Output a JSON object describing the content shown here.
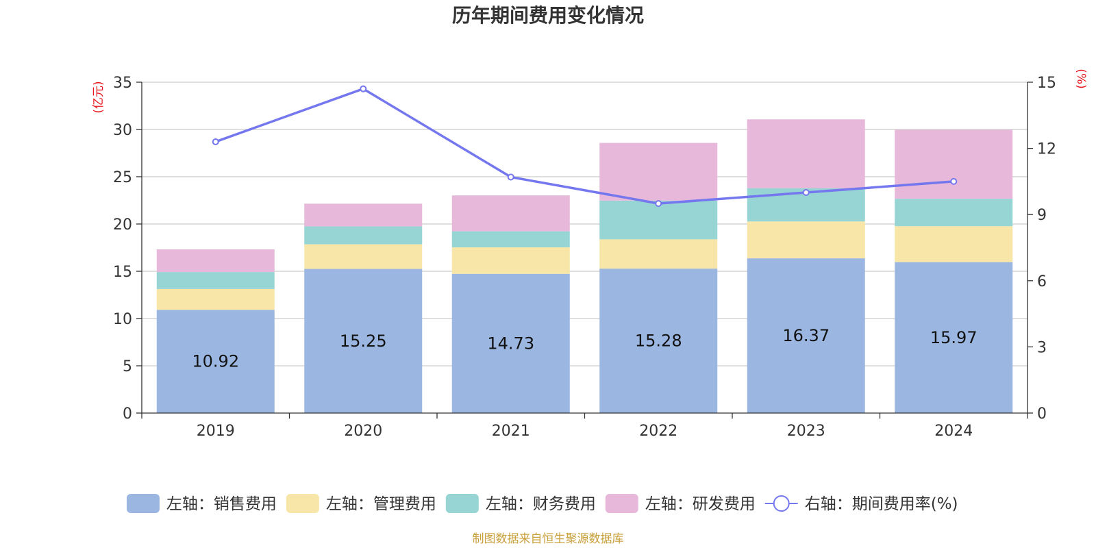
{
  "chart_data": {
    "type": "bar",
    "title": "历年期间费用变化情况",
    "categories": [
      "2019",
      "2020",
      "2021",
      "2022",
      "2023",
      "2024"
    ],
    "left_axis": {
      "unit": "(亿元)",
      "ylim": [
        0,
        35
      ],
      "ticks": [
        0,
        5,
        10,
        15,
        20,
        25,
        30,
        35
      ]
    },
    "right_axis": {
      "unit": "(%)",
      "ylim": [
        0,
        15
      ],
      "ticks": [
        0,
        3,
        6,
        9,
        12,
        15
      ]
    },
    "stacked": true,
    "series": [
      {
        "name": "左轴：销售费用",
        "type": "bar",
        "axis": "left",
        "color": "#9bb7e1",
        "values": [
          10.92,
          15.25,
          14.73,
          15.28,
          16.37,
          15.97
        ],
        "show_labels": true
      },
      {
        "name": "左轴：管理费用",
        "type": "bar",
        "axis": "left",
        "color": "#f7e6a7",
        "values": [
          2.2,
          2.6,
          2.8,
          3.1,
          3.9,
          3.8
        ]
      },
      {
        "name": "左轴：财务费用",
        "type": "bar",
        "axis": "left",
        "color": "#97d4d4",
        "values": [
          1.8,
          1.9,
          1.7,
          4.1,
          3.5,
          2.9
        ]
      },
      {
        "name": "左轴：研发费用",
        "type": "bar",
        "axis": "left",
        "color": "#e7b8d9",
        "values": [
          2.4,
          2.4,
          3.8,
          6.1,
          7.3,
          7.3
        ]
      },
      {
        "name": "右轴：期间费用率(%)",
        "type": "line",
        "axis": "right",
        "color": "#7577ee",
        "values": [
          12.3,
          14.7,
          10.7,
          9.5,
          10.0,
          10.5
        ]
      }
    ],
    "grid": true,
    "legend_position": "bottom"
  },
  "source_note": "制图数据来自恒生聚源数据库"
}
